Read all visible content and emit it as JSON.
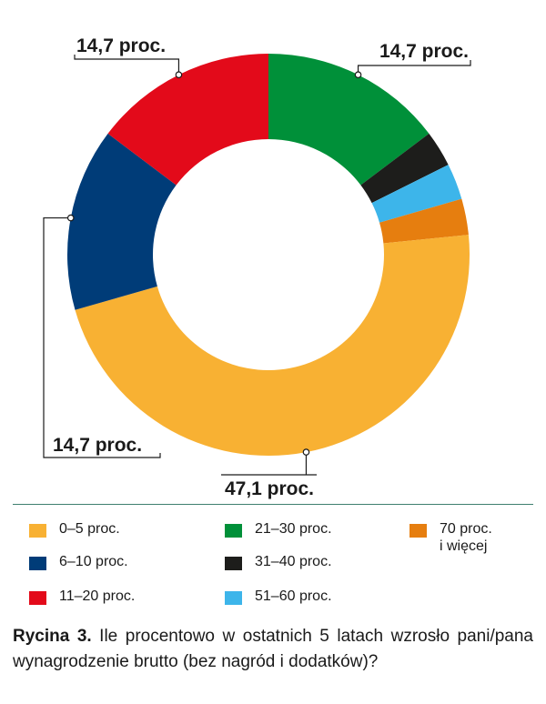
{
  "chart_data": {
    "type": "pie",
    "style": "donut",
    "categories": [
      "0–5 proc.",
      "6–10 proc.",
      "11–20 proc.",
      "21–30 proc.",
      "31–40 proc.",
      "51–60 proc.",
      "70 proc.\ni więcej"
    ],
    "values": [
      47.1,
      14.7,
      14.7,
      14.7,
      2.9,
      2.9,
      2.9
    ],
    "colors": [
      "#f8b133",
      "#003c78",
      "#e30a1a",
      "#009039",
      "#1d1d1b",
      "#3db5ea",
      "#e67e0f"
    ],
    "data_labels": [
      "47,1 proc.",
      "14,7 proc.",
      "14,7 proc.",
      "14,7 proc.",
      "",
      "",
      ""
    ],
    "legend_placement": "bottom"
  },
  "caption": {
    "label": "Rycina 3.",
    "text": " Ile procentowo w ostatnich 5 latach wzrosło pani/pana wynagrodzenie brutto (bez nagród i dodatków)?"
  }
}
